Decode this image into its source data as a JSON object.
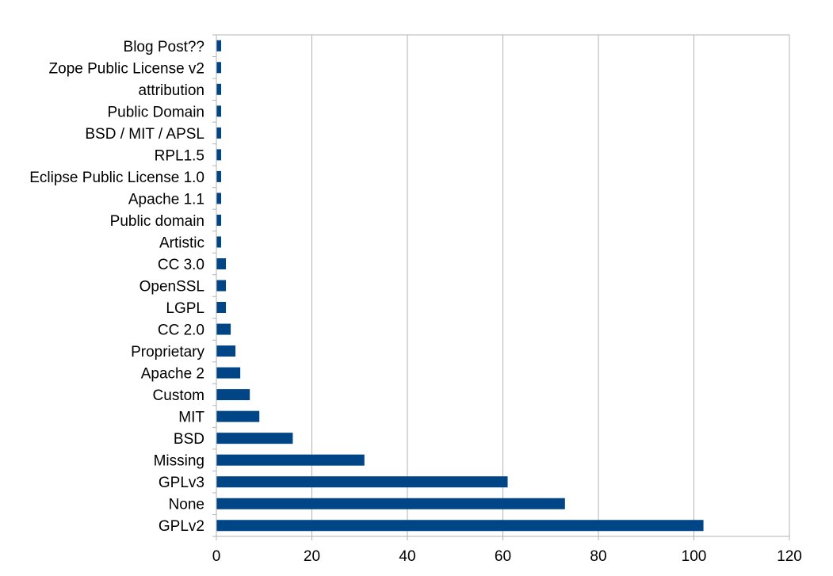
{
  "chart_data": {
    "type": "bar",
    "orientation": "horizontal",
    "categories": [
      "Blog Post??",
      "Zope Public License v2",
      "attribution",
      "Public Domain",
      "BSD / MIT / APSL",
      "RPL1.5",
      "Eclipse Public License 1.0",
      "Apache 1.1",
      "Public domain",
      "Artistic",
      "CC 3.0",
      "OpenSSL",
      "LGPL",
      "CC 2.0",
      "Proprietary",
      "Apache 2",
      "Custom",
      "MIT",
      "BSD",
      "Missing",
      "GPLv3",
      "None",
      "GPLv2"
    ],
    "values": [
      1,
      1,
      1,
      1,
      1,
      1,
      1,
      1,
      1,
      1,
      2,
      2,
      2,
      3,
      4,
      5,
      7,
      9,
      16,
      31,
      61,
      73,
      102
    ],
    "xlim": [
      0,
      120
    ],
    "xticks": [
      "0",
      "20",
      "40",
      "60",
      "80",
      "100",
      "120"
    ],
    "grid": "vertical",
    "bar_color": "#004586",
    "grid_color": "#b3b3b3",
    "legend": "none"
  }
}
